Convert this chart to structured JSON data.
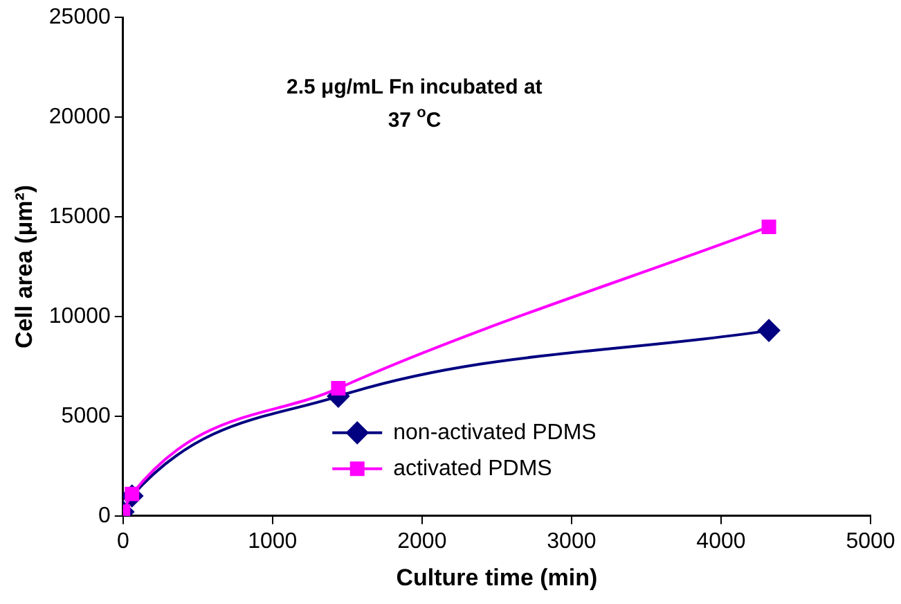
{
  "chart_data": {
    "type": "line",
    "title": "2.5 μg/mL Fn incubated at 37 $^{o}$C",
    "xlabel": "Culture time (min)",
    "ylabel": "Cell area (μm²)",
    "x": [
      0,
      60,
      1440,
      4320
    ],
    "series": [
      {
        "name": "non-activated PDMS",
        "color": "#000080",
        "marker": "diamond",
        "values": [
          200,
          1000,
          6000,
          9300
        ]
      },
      {
        "name": "activated PDMS",
        "color": "#ff00ff",
        "marker": "square",
        "values": [
          200,
          1100,
          6400,
          14500
        ]
      }
    ],
    "xlim": [
      0,
      5000
    ],
    "xticks": [
      0,
      1000,
      2000,
      3000,
      4000,
      5000
    ],
    "ylim": [
      0,
      25000
    ],
    "yticks": [
      0,
      5000,
      10000,
      15000,
      20000,
      25000
    ],
    "grid": false,
    "legend": "bottom",
    "line_style": "solid"
  }
}
